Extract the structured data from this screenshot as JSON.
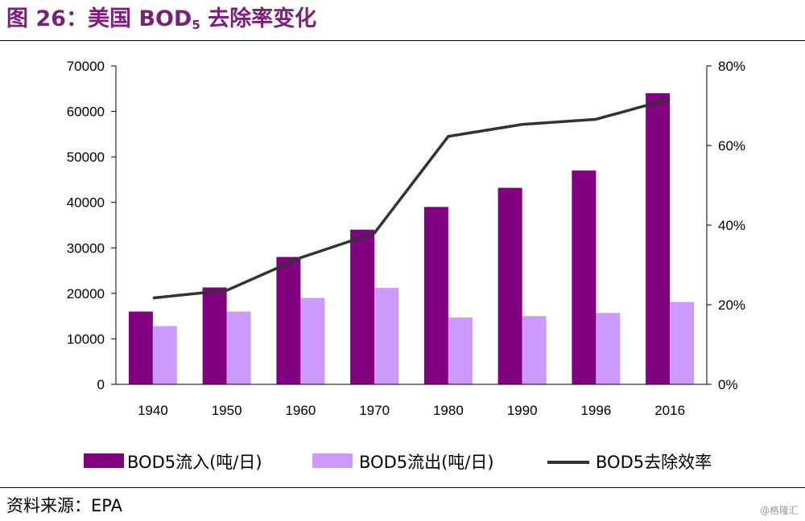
{
  "header": {
    "title_prefix": "图 26：美国 BOD",
    "title_sub": "5",
    "title_suffix": " 去除率变化"
  },
  "source": "资料来源：EPA",
  "watermark": "@格隆汇",
  "colors": {
    "inflow": "#800080",
    "outflow": "#cc99ff",
    "rate": "#333333",
    "title": "#7b1f7b"
  },
  "chart_data": {
    "type": "bar",
    "categories": [
      "1940",
      "1950",
      "1960",
      "1970",
      "1980",
      "1990",
      "1996",
      "2016"
    ],
    "series": [
      {
        "name": "BOD5流入(吨/日)",
        "type": "bar",
        "axis": "left",
        "values": [
          16000,
          21300,
          28000,
          34000,
          39000,
          43200,
          47000,
          64000
        ]
      },
      {
        "name": "BOD5流出(吨/日)",
        "type": "bar",
        "axis": "left",
        "values": [
          12800,
          16000,
          19000,
          21200,
          14700,
          15000,
          15700,
          18100
        ]
      },
      {
        "name": "BOD5去除效率",
        "type": "line",
        "axis": "right",
        "values": [
          21.7,
          23.6,
          31.8,
          38.0,
          62.3,
          65.3,
          66.6,
          71.7
        ]
      }
    ],
    "y_left": {
      "min": 0,
      "max": 70000,
      "ticks": [
        "0",
        "10000",
        "20000",
        "30000",
        "40000",
        "50000",
        "60000",
        "70000"
      ]
    },
    "y_right": {
      "min": 0,
      "max": 80,
      "ticks": [
        "0%",
        "20%",
        "40%",
        "60%",
        "80%"
      ]
    },
    "legend_position": "bottom",
    "grid": false
  }
}
